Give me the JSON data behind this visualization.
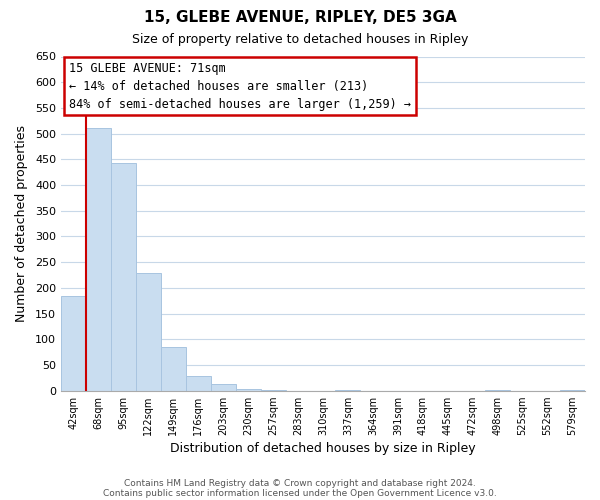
{
  "title": "15, GLEBE AVENUE, RIPLEY, DE5 3GA",
  "subtitle": "Size of property relative to detached houses in Ripley",
  "xlabel": "Distribution of detached houses by size in Ripley",
  "ylabel": "Number of detached properties",
  "bar_labels": [
    "42sqm",
    "68sqm",
    "95sqm",
    "122sqm",
    "149sqm",
    "176sqm",
    "203sqm",
    "230sqm",
    "257sqm",
    "283sqm",
    "310sqm",
    "337sqm",
    "364sqm",
    "391sqm",
    "418sqm",
    "445sqm",
    "472sqm",
    "498sqm",
    "525sqm",
    "552sqm",
    "579sqm"
  ],
  "bar_values": [
    185,
    510,
    443,
    228,
    85,
    29,
    13,
    4,
    1,
    0,
    0,
    1,
    0,
    0,
    0,
    0,
    0,
    1,
    0,
    0,
    1
  ],
  "bar_color": "#c9ddf0",
  "bar_edge_color": "#a8c4e0",
  "vline_x": 0.5,
  "ylim": [
    0,
    650
  ],
  "yticks": [
    0,
    50,
    100,
    150,
    200,
    250,
    300,
    350,
    400,
    450,
    500,
    550,
    600,
    650
  ],
  "annotation_title": "15 GLEBE AVENUE: 71sqm",
  "annotation_line1": "← 14% of detached houses are smaller (213)",
  "annotation_line2": "84% of semi-detached houses are larger (1,259) →",
  "annotation_box_color": "#ffffff",
  "annotation_box_edge": "#cc0000",
  "vline_color": "#cc0000",
  "footer1": "Contains HM Land Registry data © Crown copyright and database right 2024.",
  "footer2": "Contains public sector information licensed under the Open Government Licence v3.0.",
  "background_color": "#ffffff",
  "grid_color": "#c8d8e8"
}
